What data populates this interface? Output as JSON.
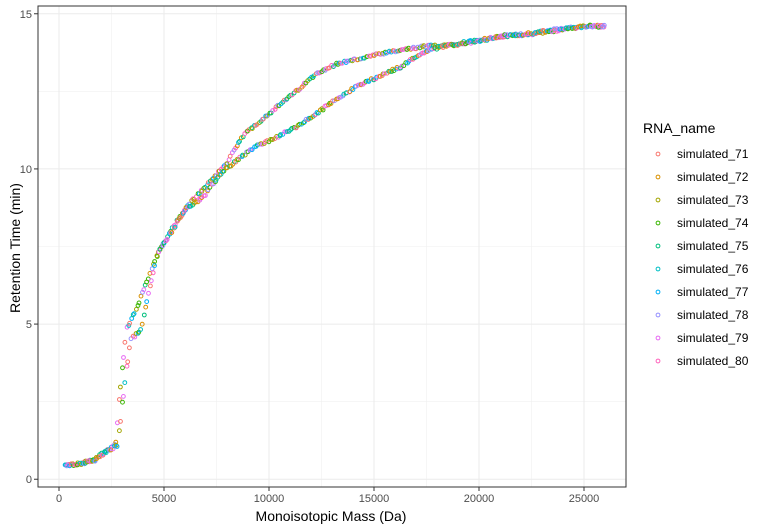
{
  "chart_data": {
    "type": "scatter",
    "title": "",
    "xlabel": "Monoisotopic Mass (Da)",
    "ylabel": "Retention Time (min)",
    "xlim": [
      -1000,
      27000
    ],
    "ylim": [
      -0.25,
      15.25
    ],
    "x_ticks": [
      0,
      5000,
      10000,
      15000,
      20000,
      25000
    ],
    "x_tick_labels": [
      "0",
      "5000",
      "10000",
      "15000",
      "20000",
      "25000"
    ],
    "y_ticks": [
      0,
      5,
      10,
      15
    ],
    "y_tick_labels": [
      "0",
      "5",
      "10",
      "15"
    ],
    "grid": true,
    "legend_position": "right",
    "legend_title": "RNA_name",
    "marker": "open-circle",
    "series": [
      {
        "name": "simulated_71",
        "color": "#F8766D"
      },
      {
        "name": "simulated_72",
        "color": "#D89000"
      },
      {
        "name": "simulated_73",
        "color": "#A3A500"
      },
      {
        "name": "simulated_74",
        "color": "#39B600"
      },
      {
        "name": "simulated_75",
        "color": "#00BF7D"
      },
      {
        "name": "simulated_76",
        "color": "#00BFC4"
      },
      {
        "name": "simulated_77",
        "color": "#00B0F6"
      },
      {
        "name": "simulated_78",
        "color": "#9590FF"
      },
      {
        "name": "simulated_79",
        "color": "#E76BF3"
      },
      {
        "name": "simulated_80",
        "color": "#FF62BC"
      }
    ],
    "trend": {
      "upper_branch": [
        [
          300,
          0.45
        ],
        [
          1000,
          0.5
        ],
        [
          1700,
          0.65
        ],
        [
          2300,
          0.95
        ],
        [
          2700,
          1.15
        ],
        [
          2900,
          2.8
        ],
        [
          3200,
          4.8
        ],
        [
          3700,
          5.5
        ],
        [
          4200,
          6.4
        ],
        [
          4800,
          7.4
        ],
        [
          5500,
          8.2
        ],
        [
          6300,
          8.95
        ],
        [
          7200,
          9.6
        ],
        [
          8000,
          10.2
        ],
        [
          8800,
          11.1
        ],
        [
          9500,
          11.5
        ],
        [
          10300,
          11.95
        ],
        [
          11300,
          12.5
        ],
        [
          12300,
          13.1
        ],
        [
          13300,
          13.4
        ],
        [
          14300,
          13.55
        ],
        [
          15300,
          13.7
        ],
        [
          16500,
          13.85
        ],
        [
          17500,
          13.95
        ],
        [
          18500,
          14.0
        ],
        [
          19500,
          14.1
        ],
        [
          20500,
          14.2
        ],
        [
          21500,
          14.3
        ],
        [
          22500,
          14.35
        ],
        [
          23500,
          14.45
        ],
        [
          24500,
          14.55
        ],
        [
          25300,
          14.6
        ],
        [
          26000,
          14.6
        ]
      ],
      "lower_branch": [
        [
          300,
          0.45
        ],
        [
          1000,
          0.5
        ],
        [
          1700,
          0.6
        ],
        [
          2300,
          0.9
        ],
        [
          2800,
          1.1
        ],
        [
          3000,
          2.35
        ],
        [
          3400,
          4.5
        ],
        [
          3900,
          4.8
        ],
        [
          4300,
          6.1
        ],
        [
          4700,
          7.3
        ],
        [
          5300,
          7.9
        ],
        [
          6000,
          8.7
        ],
        [
          6900,
          9.1
        ],
        [
          7700,
          9.85
        ],
        [
          8500,
          10.3
        ],
        [
          9300,
          10.7
        ],
        [
          10300,
          11.0
        ],
        [
          11300,
          11.35
        ],
        [
          12300,
          11.8
        ],
        [
          13300,
          12.3
        ],
        [
          14300,
          12.7
        ],
        [
          15300,
          13.0
        ],
        [
          16300,
          13.3
        ],
        [
          17300,
          13.75
        ],
        [
          18300,
          13.95
        ],
        [
          19300,
          14.05
        ],
        [
          20300,
          14.15
        ],
        [
          21300,
          14.3
        ],
        [
          22300,
          14.35
        ],
        [
          23300,
          14.45
        ],
        [
          24300,
          14.55
        ],
        [
          25300,
          14.6
        ],
        [
          26000,
          14.6
        ]
      ]
    }
  }
}
